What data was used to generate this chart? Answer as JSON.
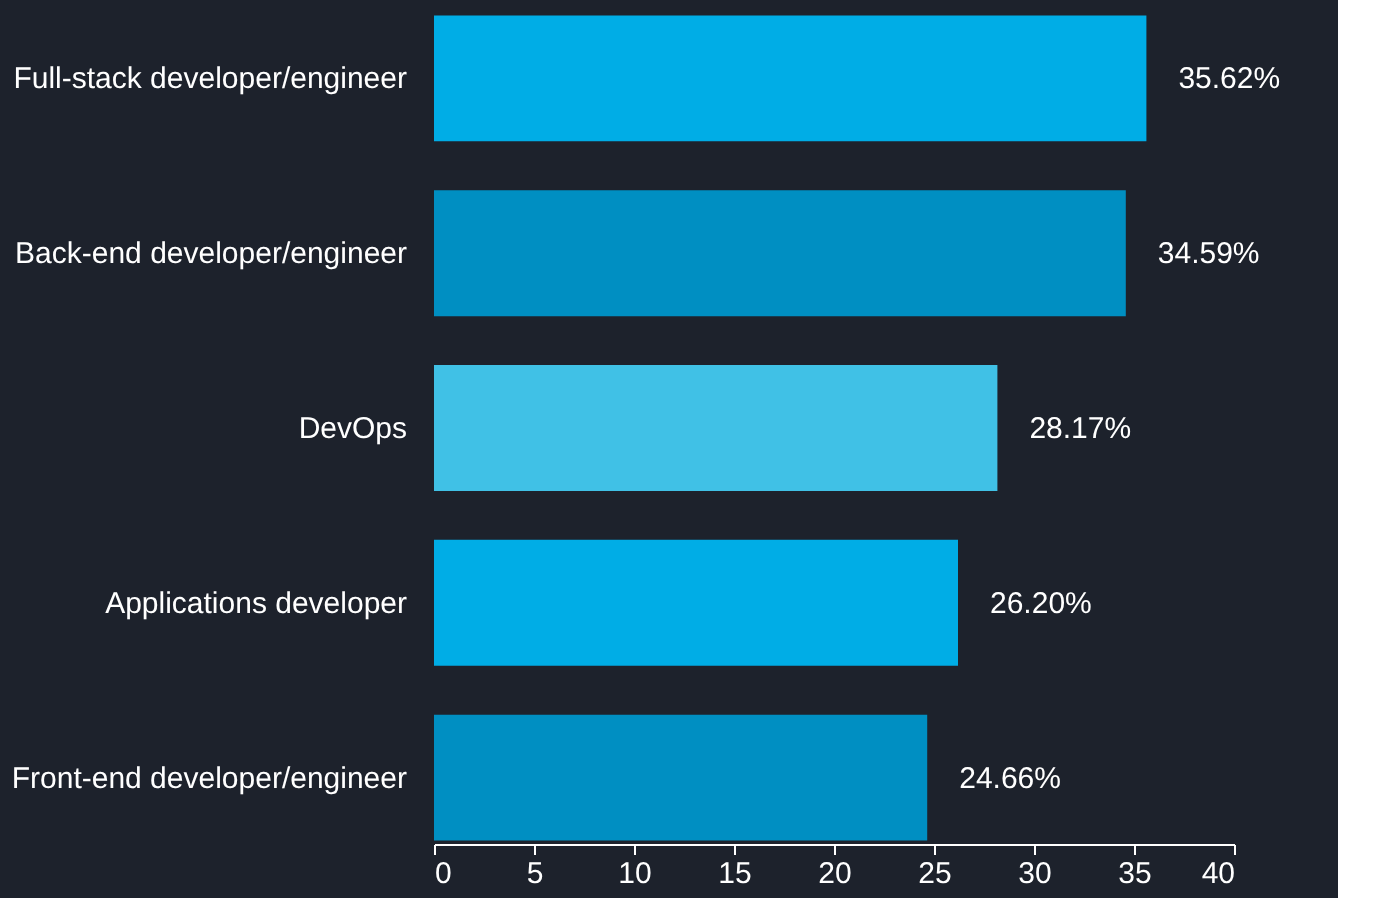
{
  "chart_data": {
    "type": "bar",
    "orientation": "horizontal",
    "categories": [
      "Full-stack developer/engineer",
      "Back-end developer/engineer",
      "DevOps",
      "Applications developer",
      "Front-end developer/engineer"
    ],
    "values": [
      35.62,
      34.59,
      28.17,
      26.2,
      24.66
    ],
    "colors": [
      "#00ade6",
      "#008fc2",
      "#40c1e6",
      "#00ade6",
      "#008fc2"
    ],
    "value_labels": [
      "35.62%",
      "34.59%",
      "28.17%",
      "26.20%",
      "24.66%"
    ],
    "xlim": [
      0,
      40
    ],
    "xticks": [
      0,
      5,
      10,
      15,
      20,
      25,
      30,
      35,
      40
    ],
    "grid": false
  }
}
